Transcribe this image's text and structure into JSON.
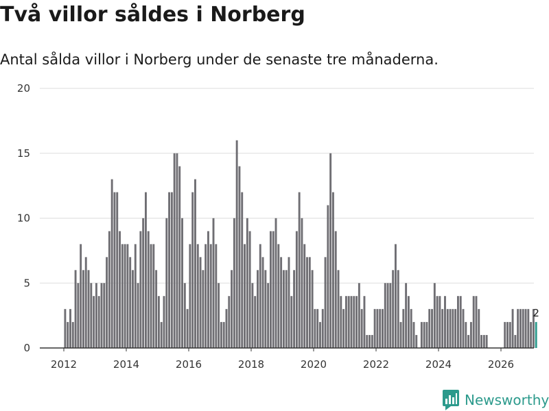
{
  "title": "Två villor såldes i Norberg",
  "subtitle": "Antal sålda villor i Norberg under de senaste tre månaderna.",
  "brand": {
    "name": "Newsworthy",
    "color": "#2c9a8c",
    "icon": "newsworthy-logo-icon"
  },
  "colors": {
    "bar": "#6f6e73",
    "highlight": "#2c9a8c",
    "grid": "#dddddd",
    "axis": "#333333"
  },
  "chart_data": {
    "type": "bar",
    "title": "Två villor såldes i Norberg",
    "xlabel": "",
    "ylabel": "",
    "ylim": [
      0,
      20
    ],
    "yticks": [
      0,
      5,
      10,
      15,
      20
    ],
    "xticks": [
      2012,
      2014,
      2016,
      2018,
      2020,
      2022,
      2024,
      2026
    ],
    "start": {
      "year": 2012,
      "month": 1
    },
    "grid": true,
    "highlight_last": true,
    "last_label": "2",
    "values": [
      3,
      2,
      3,
      2,
      6,
      5,
      8,
      6,
      7,
      6,
      5,
      4,
      5,
      4,
      5,
      5,
      7,
      9,
      13,
      12,
      12,
      9,
      8,
      8,
      8,
      7,
      6,
      8,
      5,
      9,
      10,
      12,
      9,
      8,
      8,
      6,
      4,
      2,
      4,
      10,
      12,
      12,
      15,
      15,
      14,
      10,
      5,
      3,
      8,
      12,
      13,
      8,
      7,
      6,
      8,
      9,
      8,
      10,
      8,
      5,
      2,
      2,
      3,
      4,
      6,
      10,
      16,
      14,
      12,
      8,
      10,
      9,
      5,
      4,
      6,
      8,
      7,
      6,
      5,
      9,
      9,
      10,
      8,
      7,
      6,
      6,
      7,
      4,
      6,
      9,
      12,
      10,
      8,
      7,
      7,
      6,
      3,
      3,
      2,
      3,
      7,
      11,
      15,
      12,
      9,
      6,
      4,
      3,
      4,
      4,
      4,
      4,
      4,
      5,
      3,
      4,
      1,
      1,
      1,
      3,
      3,
      3,
      3,
      5,
      5,
      5,
      6,
      8,
      6,
      2,
      3,
      5,
      4,
      3,
      2,
      1,
      0,
      2,
      2,
      2,
      3,
      3,
      5,
      4,
      4,
      3,
      4,
      3,
      3,
      3,
      3,
      4,
      4,
      3,
      2,
      1,
      2,
      4,
      4,
      3,
      1,
      1,
      1,
      0,
      0,
      0,
      0,
      0,
      0,
      2,
      2,
      2,
      3,
      1,
      3,
      3,
      3,
      3,
      3,
      2,
      3,
      2
    ]
  }
}
